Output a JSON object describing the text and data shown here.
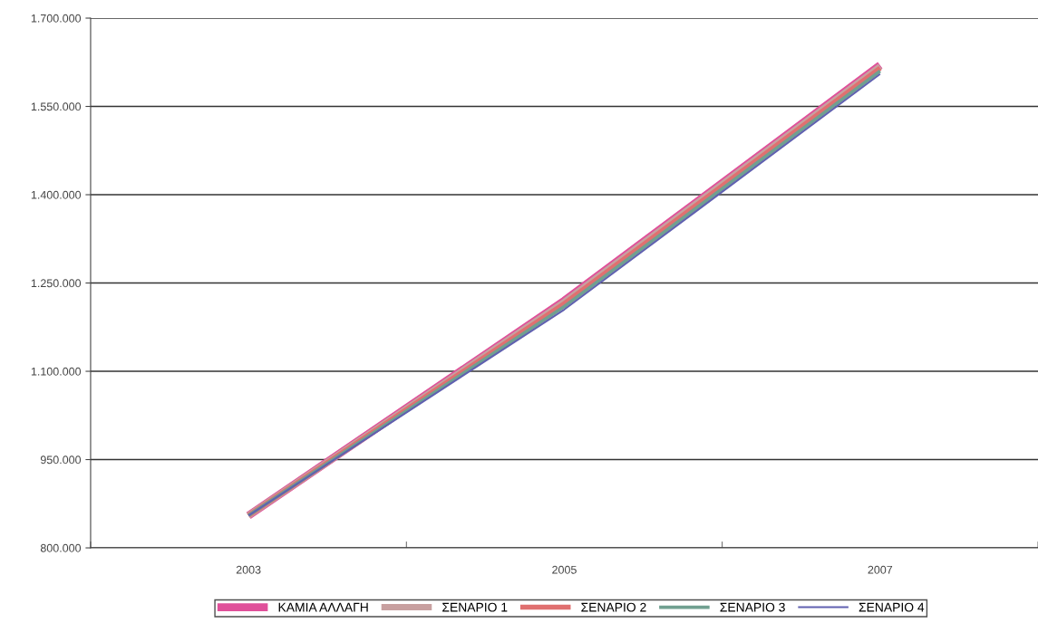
{
  "chart_data": {
    "type": "line",
    "categories": [
      "2003",
      "2005",
      "2007"
    ],
    "series": [
      {
        "name": "ΚΑΜΙΑ ΑΛΛΑΓΗ",
        "color": "#e0509a",
        "values": [
          855000,
          1220000,
          1620000
        ]
      },
      {
        "name": "ΣΕΝΑΡΙΟ 1",
        "color": "#c8a0a0",
        "values": [
          855000,
          1218000,
          1618000
        ]
      },
      {
        "name": "ΣΕΝΑΡΙΟ 2",
        "color": "#e07070",
        "values": [
          855000,
          1215000,
          1615000
        ]
      },
      {
        "name": "ΣΕΝΑΡΙΟ 3",
        "color": "#70a090",
        "values": [
          855000,
          1210000,
          1610000
        ]
      },
      {
        "name": "ΣΕΝΑΡΙΟ 4",
        "color": "#6060b0",
        "values": [
          855000,
          1205000,
          1605000
        ]
      }
    ],
    "ylim": [
      800000,
      1700000
    ],
    "yticks": [
      {
        "value": 800000,
        "label": "800.000"
      },
      {
        "value": 950000,
        "label": "950.000"
      },
      {
        "value": 1100000,
        "label": "1.100.000"
      },
      {
        "value": 1250000,
        "label": "1.250.000"
      },
      {
        "value": 1400000,
        "label": "1.400.000"
      },
      {
        "value": 1550000,
        "label": "1.550.000"
      },
      {
        "value": 1700000,
        "label": "1.700.000"
      }
    ],
    "grid": "y",
    "legend": "bottom",
    "marker": "none",
    "line_style": "solid"
  }
}
